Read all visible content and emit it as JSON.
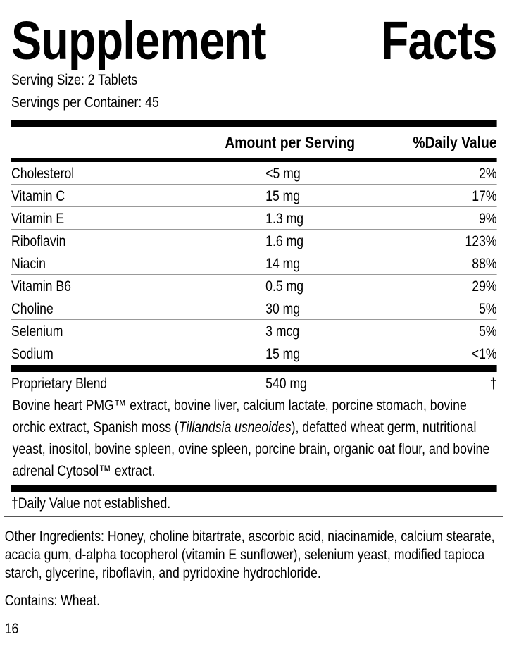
{
  "label": {
    "title_word1": "Supplement",
    "title_word2": "Facts",
    "serving_size": "Serving Size: 2 Tablets",
    "servings_per_container": "Servings per Container: 45",
    "header_amount": "Amount per Serving",
    "header_dv": "%Daily Value",
    "nutrients": [
      {
        "name": "Cholesterol",
        "amount": "<5 mg",
        "dv": "2%"
      },
      {
        "name": "Vitamin C",
        "amount": "15 mg",
        "dv": "17%"
      },
      {
        "name": "Vitamin E",
        "amount": "1.3 mg",
        "dv": "9%"
      },
      {
        "name": "Riboflavin",
        "amount": "1.6 mg",
        "dv": "123%"
      },
      {
        "name": "Niacin",
        "amount": "14 mg",
        "dv": "88%"
      },
      {
        "name": "Vitamin B6",
        "amount": "0.5 mg",
        "dv": "29%"
      },
      {
        "name": "Choline",
        "amount": "30 mg",
        "dv": "5%"
      },
      {
        "name": "Selenium",
        "amount": "3 mcg",
        "dv": "5%"
      },
      {
        "name": "Sodium",
        "amount": "15 mg",
        "dv": "<1%"
      }
    ],
    "blend": {
      "name": "Proprietary Blend",
      "amount": "540 mg",
      "dv": "†",
      "text_before": "Bovine heart PMG™ extract, bovine liver, calcium lactate, porcine stomach, bovine orchic extract, Spanish moss (",
      "text_italic": "Tillandsia usneoides",
      "text_after": "), defatted wheat germ, nutritional yeast, inositol, bovine spleen, ovine spleen, porcine brain, organic oat flour, and bovine adrenal Cytosol™ extract."
    },
    "footnote": "†Daily Value not established."
  },
  "other_ingredients": "Other Ingredients: Honey, choline bitartrate, ascorbic acid, niacinamide, calcium stearate, acacia gum, d-alpha tocopherol (vitamin E sunflower), selenium yeast, modified tapioca starch, glycerine, riboflavin, and pyridoxine hydrochloride.",
  "contains": "Contains: Wheat.",
  "page_number": "16"
}
